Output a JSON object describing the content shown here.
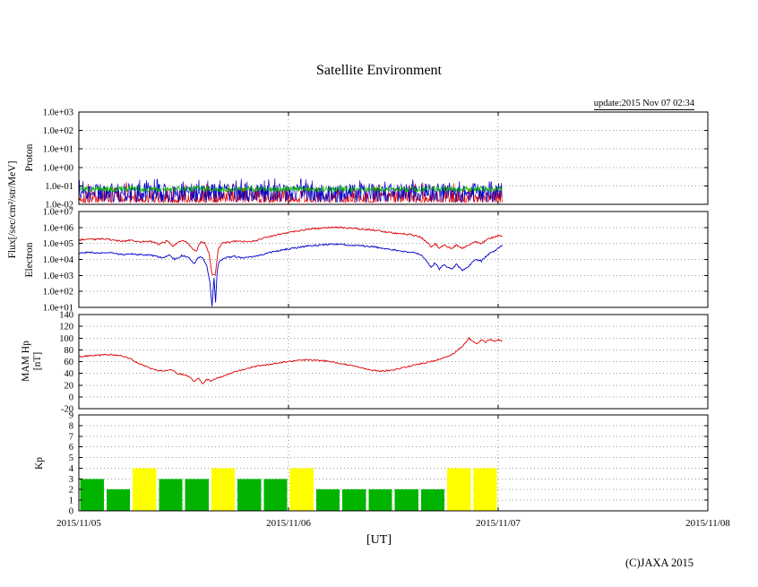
{
  "title": "Satellite Environment",
  "update_text": "update:2015 Nov 07 02:34",
  "xaxis_title": "[UT]",
  "copyright": "(C)JAXA 2015",
  "left_labels": {
    "flux": "Flux[/sec/cm²/str/MeV]",
    "proton": "Proton",
    "electron": "Electron",
    "mam_hp_line1": "MAM Hp",
    "mam_hp_line2": "[nT]",
    "kp": "Kp"
  },
  "x_axis": {
    "tick_labels": [
      "2015/11/05",
      "2015/11/06",
      "2015/11/07",
      "2015/11/08"
    ],
    "span_days": 3
  },
  "chart_data": [
    {
      "id": "proton-flux",
      "type": "line",
      "ylabel": "Proton",
      "yscale": "log",
      "ylog_range": [
        -2,
        3
      ],
      "ytick_labels": [
        "1.0e+03",
        "1.0e+02",
        "1.0e+01",
        "1.0e+00",
        "1.0e-01",
        "1.0e-02"
      ],
      "data_end_day": 2.02,
      "noise_step_days": 0.0025,
      "noise_series": [
        {
          "name": "proton-channel-red",
          "color": "#dd0000",
          "log_band": [
            -1.9,
            -1.05
          ],
          "bias": "low",
          "spike_prob": 0.015,
          "spike_extra": 0.25
        },
        {
          "name": "proton-channel-blue",
          "color": "#0000cc",
          "log_band": [
            -1.9,
            -0.85
          ],
          "bias": "uniform",
          "spike_prob": 0.03,
          "spike_extra": 0.25
        },
        {
          "name": "proton-channel-green",
          "color": "#00b400",
          "log_band": [
            -1.32,
            -1.02
          ],
          "bias": "uniform",
          "spike_prob": 0,
          "spike_extra": 0
        }
      ]
    },
    {
      "id": "electron-flux",
      "type": "line",
      "ylabel": "Electron",
      "yscale": "log",
      "ylog_range": [
        1,
        7
      ],
      "ytick_labels": [
        "1.0e+07",
        "1.0e+06",
        "1.0e+05",
        "1.0e+04",
        "1.0e+03",
        "1.0e+02",
        "1.0e+01"
      ],
      "jitter": 0.05,
      "sample_step_days": 0.004,
      "series": [
        {
          "name": "electron-high-energy",
          "color": "#dd0000",
          "points": [
            [
              0.0,
              5.2
            ],
            [
              0.04,
              5.3
            ],
            [
              0.08,
              5.25
            ],
            [
              0.12,
              5.3
            ],
            [
              0.16,
              5.2
            ],
            [
              0.2,
              5.15
            ],
            [
              0.25,
              5.2
            ],
            [
              0.3,
              5.1
            ],
            [
              0.34,
              5.15
            ],
            [
              0.38,
              4.95
            ],
            [
              0.42,
              5.15
            ],
            [
              0.45,
              4.85
            ],
            [
              0.48,
              5.1
            ],
            [
              0.51,
              5.15
            ],
            [
              0.54,
              4.7
            ],
            [
              0.56,
              4.5
            ],
            [
              0.58,
              5.1
            ],
            [
              0.6,
              5.05
            ],
            [
              0.62,
              4.4
            ],
            [
              0.635,
              3.1
            ],
            [
              0.65,
              3.0
            ],
            [
              0.665,
              4.6
            ],
            [
              0.68,
              5.0
            ],
            [
              0.72,
              5.1
            ],
            [
              0.76,
              5.15
            ],
            [
              0.8,
              5.1
            ],
            [
              0.85,
              5.2
            ],
            [
              0.9,
              5.4
            ],
            [
              0.95,
              5.55
            ],
            [
              1.0,
              5.7
            ],
            [
              1.05,
              5.8
            ],
            [
              1.1,
              5.9
            ],
            [
              1.15,
              5.95
            ],
            [
              1.2,
              6.0
            ],
            [
              1.25,
              6.0
            ],
            [
              1.3,
              5.95
            ],
            [
              1.35,
              5.9
            ],
            [
              1.4,
              5.85
            ],
            [
              1.45,
              5.75
            ],
            [
              1.5,
              5.65
            ],
            [
              1.55,
              5.6
            ],
            [
              1.6,
              5.5
            ],
            [
              1.63,
              5.4
            ],
            [
              1.66,
              5.1
            ],
            [
              1.68,
              4.8
            ],
            [
              1.7,
              5.0
            ],
            [
              1.72,
              4.7
            ],
            [
              1.74,
              4.9
            ],
            [
              1.76,
              4.8
            ],
            [
              1.78,
              4.7
            ],
            [
              1.8,
              4.9
            ],
            [
              1.83,
              4.7
            ],
            [
              1.86,
              4.9
            ],
            [
              1.89,
              5.1
            ],
            [
              1.92,
              5.0
            ],
            [
              1.95,
              5.3
            ],
            [
              1.98,
              5.4
            ],
            [
              2.0,
              5.5
            ],
            [
              2.02,
              5.45
            ]
          ]
        },
        {
          "name": "electron-low-energy",
          "color": "#0000cc",
          "points": [
            [
              0.0,
              4.4
            ],
            [
              0.05,
              4.45
            ],
            [
              0.1,
              4.4
            ],
            [
              0.15,
              4.45
            ],
            [
              0.2,
              4.3
            ],
            [
              0.25,
              4.35
            ],
            [
              0.3,
              4.3
            ],
            [
              0.35,
              4.25
            ],
            [
              0.4,
              4.1
            ],
            [
              0.43,
              4.25
            ],
            [
              0.46,
              4.0
            ],
            [
              0.49,
              4.25
            ],
            [
              0.52,
              4.15
            ],
            [
              0.55,
              3.7
            ],
            [
              0.57,
              4.15
            ],
            [
              0.59,
              4.1
            ],
            [
              0.61,
              3.6
            ],
            [
              0.625,
              2.6
            ],
            [
              0.635,
              1.1
            ],
            [
              0.645,
              2.9
            ],
            [
              0.652,
              1.3
            ],
            [
              0.66,
              3.3
            ],
            [
              0.67,
              3.9
            ],
            [
              0.7,
              4.1
            ],
            [
              0.74,
              4.2
            ],
            [
              0.78,
              4.1
            ],
            [
              0.82,
              4.15
            ],
            [
              0.86,
              4.25
            ],
            [
              0.9,
              4.4
            ],
            [
              0.95,
              4.55
            ],
            [
              1.0,
              4.65
            ],
            [
              1.05,
              4.75
            ],
            [
              1.1,
              4.85
            ],
            [
              1.15,
              4.9
            ],
            [
              1.2,
              4.95
            ],
            [
              1.25,
              4.95
            ],
            [
              1.3,
              4.9
            ],
            [
              1.35,
              4.85
            ],
            [
              1.4,
              4.8
            ],
            [
              1.45,
              4.7
            ],
            [
              1.5,
              4.6
            ],
            [
              1.55,
              4.5
            ],
            [
              1.6,
              4.45
            ],
            [
              1.63,
              4.3
            ],
            [
              1.66,
              3.9
            ],
            [
              1.68,
              3.5
            ],
            [
              1.7,
              3.8
            ],
            [
              1.72,
              3.4
            ],
            [
              1.74,
              3.7
            ],
            [
              1.76,
              3.5
            ],
            [
              1.78,
              3.4
            ],
            [
              1.8,
              3.7
            ],
            [
              1.83,
              3.3
            ],
            [
              1.86,
              3.6
            ],
            [
              1.89,
              4.0
            ],
            [
              1.92,
              3.9
            ],
            [
              1.95,
              4.3
            ],
            [
              1.98,
              4.5
            ],
            [
              2.0,
              4.7
            ],
            [
              2.02,
              4.9
            ]
          ]
        }
      ]
    },
    {
      "id": "mam-hp",
      "type": "line",
      "ylabel": "MAM Hp [nT]",
      "yscale": "linear",
      "ylim": [
        -20,
        140
      ],
      "yticks": [
        140,
        120,
        100,
        80,
        60,
        40,
        20,
        0,
        -20
      ],
      "jitter": 1.2,
      "sample_step_days": 0.004,
      "series": [
        {
          "name": "hp-magnetic-field",
          "color": "#dd0000",
          "points": [
            [
              0.0,
              68
            ],
            [
              0.05,
              70
            ],
            [
              0.1,
              71
            ],
            [
              0.15,
              72
            ],
            [
              0.2,
              70
            ],
            [
              0.24,
              66
            ],
            [
              0.28,
              58
            ],
            [
              0.32,
              52
            ],
            [
              0.36,
              46
            ],
            [
              0.4,
              44
            ],
            [
              0.44,
              46
            ],
            [
              0.47,
              40
            ],
            [
              0.5,
              38
            ],
            [
              0.53,
              33
            ],
            [
              0.55,
              25
            ],
            [
              0.57,
              33
            ],
            [
              0.59,
              22
            ],
            [
              0.61,
              30
            ],
            [
              0.63,
              27
            ],
            [
              0.66,
              32
            ],
            [
              0.7,
              37
            ],
            [
              0.74,
              42
            ],
            [
              0.78,
              46
            ],
            [
              0.82,
              50
            ],
            [
              0.86,
              53
            ],
            [
              0.9,
              55
            ],
            [
              0.95,
              58
            ],
            [
              1.0,
              60
            ],
            [
              1.05,
              62
            ],
            [
              1.1,
              63
            ],
            [
              1.15,
              62
            ],
            [
              1.2,
              60
            ],
            [
              1.25,
              57
            ],
            [
              1.3,
              53
            ],
            [
              1.35,
              49
            ],
            [
              1.4,
              45
            ],
            [
              1.45,
              44
            ],
            [
              1.5,
              46
            ],
            [
              1.55,
              50
            ],
            [
              1.6,
              54
            ],
            [
              1.65,
              58
            ],
            [
              1.7,
              62
            ],
            [
              1.74,
              66
            ],
            [
              1.78,
              72
            ],
            [
              1.81,
              80
            ],
            [
              1.84,
              90
            ],
            [
              1.86,
              100
            ],
            [
              1.88,
              95
            ],
            [
              1.9,
              90
            ],
            [
              1.92,
              97
            ],
            [
              1.94,
              93
            ],
            [
              1.96,
              98
            ],
            [
              1.98,
              94
            ],
            [
              2.0,
              97
            ],
            [
              2.02,
              95
            ]
          ]
        }
      ]
    },
    {
      "id": "kp-index",
      "type": "bar",
      "ylabel": "Kp",
      "yscale": "linear",
      "ylim": [
        0,
        9
      ],
      "yticks": [
        9,
        8,
        7,
        6,
        5,
        4,
        3,
        2,
        1,
        0
      ],
      "bar_hours": 3,
      "high_threshold": 4,
      "colors": {
        "low": "#00b400",
        "high": "#ffff00"
      },
      "values": [
        3,
        2,
        4,
        3,
        3,
        4,
        3,
        3,
        4,
        2,
        2,
        2,
        2,
        2,
        4,
        4
      ]
    }
  ]
}
